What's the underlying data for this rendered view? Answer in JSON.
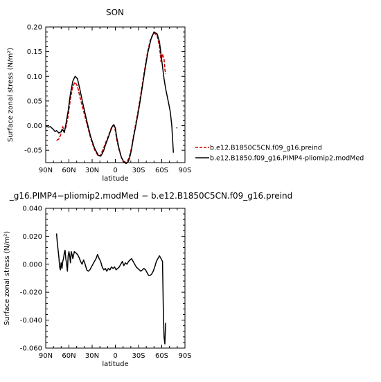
{
  "chart_data": [
    {
      "type": "line",
      "title": "SON",
      "xlabel": "latitude",
      "ylabel": "Surface zonal stress (N/m²)",
      "xlim": [
        90,
        -90
      ],
      "ylim": [
        -0.075,
        0.2
      ],
      "x_ticks": [
        {
          "value": 90,
          "label": "90N"
        },
        {
          "value": 60,
          "label": "60N"
        },
        {
          "value": 30,
          "label": "30N"
        },
        {
          "value": 0,
          "label": "0"
        },
        {
          "value": -30,
          "label": "30S"
        },
        {
          "value": -60,
          "label": "60S"
        },
        {
          "value": -90,
          "label": "90S"
        }
      ],
      "y_ticks": [
        {
          "value": 0.2,
          "label": "0.20"
        },
        {
          "value": 0.15,
          "label": "0.15"
        },
        {
          "value": 0.1,
          "label": "0.10"
        },
        {
          "value": 0.05,
          "label": "0.05"
        },
        {
          "value": 0.0,
          "label": "0.00"
        },
        {
          "value": -0.05,
          "label": "-0.05"
        }
      ],
      "grid": false,
      "legend_position": "right",
      "series": [
        {
          "name": "b.e12.B1850C5CN.f09_g16.preind",
          "color": "#cc0000",
          "dash": "dashed",
          "x": [
            76,
            73,
            71,
            70,
            69,
            68,
            66,
            64,
            61,
            58,
            55,
            52,
            49,
            46,
            42,
            37,
            32,
            27,
            22,
            19,
            17,
            15,
            13,
            10,
            7,
            4,
            2,
            0,
            -2,
            -5,
            -8,
            -11,
            -14,
            -17,
            -19,
            -21,
            -23,
            -26,
            -30,
            -34,
            -38,
            -42,
            -46,
            -50,
            -54,
            -57,
            -59,
            -61,
            -62,
            -63,
            -64,
            -65
          ],
          "y": [
            -0.03,
            -0.027,
            -0.02,
            -0.015,
            -0.005,
            -0.002,
            -0.012,
            -0.004,
            0.02,
            0.055,
            0.08,
            0.088,
            0.08,
            0.06,
            0.035,
            0.005,
            -0.025,
            -0.048,
            -0.062,
            -0.06,
            -0.052,
            -0.045,
            -0.036,
            -0.025,
            -0.012,
            0.0,
            0.0,
            -0.01,
            -0.03,
            -0.05,
            -0.065,
            -0.072,
            -0.075,
            -0.068,
            -0.058,
            -0.045,
            -0.025,
            -0.0,
            0.035,
            0.075,
            0.115,
            0.152,
            0.178,
            0.188,
            0.183,
            0.16,
            0.13,
            0.145,
            0.14,
            0.135,
            0.115,
            0.105
          ]
        },
        {
          "name": "b.e12.B1850.f09_g16.PIMP4-pliomip2.modMed",
          "color": "#000000",
          "dash": "solid",
          "x": [
            90,
            86,
            84,
            82,
            80,
            78,
            76,
            73,
            70,
            68,
            66,
            64,
            61,
            58,
            55,
            52,
            49,
            46,
            42,
            37,
            32,
            27,
            22,
            19,
            17,
            15,
            13,
            10,
            7,
            4,
            2,
            0,
            -2,
            -5,
            -8,
            -11,
            -14,
            -17,
            -19,
            -21,
            -23,
            -26,
            -30,
            -34,
            -38,
            -42,
            -46,
            -50,
            -54,
            -57,
            -59,
            -61,
            -63,
            -65,
            -67,
            -69,
            -71,
            -73,
            -75
          ],
          "y": [
            -0.001,
            -0.003,
            -0.002,
            -0.005,
            -0.008,
            -0.012,
            -0.01,
            -0.015,
            -0.012,
            -0.008,
            -0.014,
            0.002,
            0.03,
            0.065,
            0.09,
            0.1,
            0.095,
            0.075,
            0.045,
            0.01,
            -0.022,
            -0.045,
            -0.06,
            -0.062,
            -0.057,
            -0.05,
            -0.04,
            -0.028,
            -0.014,
            -0.002,
            0.002,
            -0.005,
            -0.025,
            -0.048,
            -0.065,
            -0.074,
            -0.077,
            -0.072,
            -0.062,
            -0.048,
            -0.028,
            -0.004,
            0.03,
            0.07,
            0.11,
            0.148,
            0.175,
            0.19,
            0.186,
            0.17,
            0.145,
            0.12,
            0.095,
            0.075,
            0.06,
            0.045,
            0.028,
            0.0,
            -0.055
          ]
        },
        {
          "name": "",
          "color": "#000000",
          "dash": "solid",
          "x": [
            -79,
            -80
          ],
          "y": [
            -0.004,
            -0.005
          ]
        }
      ]
    },
    {
      "type": "line",
      "title": "_g16.PIMP4−pliomip2.modMed − b.e12.B1850C5CN.f09_g16.preind",
      "xlabel": "latitude",
      "ylabel": "Surface zonal stress (N/m²)",
      "xlim": [
        90,
        -90
      ],
      "ylim": [
        -0.06,
        0.04
      ],
      "x_ticks": [
        {
          "value": 90,
          "label": "90N"
        },
        {
          "value": 60,
          "label": "60N"
        },
        {
          "value": 30,
          "label": "30N"
        },
        {
          "value": 0,
          "label": "0"
        },
        {
          "value": -30,
          "label": "30S"
        },
        {
          "value": -60,
          "label": "60S"
        },
        {
          "value": -90,
          "label": "90S"
        }
      ],
      "y_ticks": [
        {
          "value": 0.04,
          "label": "0.040"
        },
        {
          "value": 0.02,
          "label": "0.020"
        },
        {
          "value": 0.0,
          "label": "0.000"
        },
        {
          "value": -0.02,
          "label": "-0.020"
        },
        {
          "value": -0.04,
          "label": "-0.040"
        },
        {
          "value": -0.06,
          "label": "-0.060"
        }
      ],
      "grid": false,
      "series": [
        {
          "name": "",
          "color": "#000000",
          "dash": "solid",
          "x": [
            76,
            75,
            74,
            73,
            72,
            71,
            70,
            69,
            68,
            67,
            66,
            65,
            64,
            63,
            62,
            61,
            60,
            59,
            58,
            57,
            56,
            55,
            53,
            51,
            49,
            47,
            45,
            43,
            41,
            39,
            37,
            35,
            33,
            31,
            29,
            27,
            25,
            23,
            21,
            19,
            17,
            15,
            13,
            11,
            9,
            7,
            5,
            3,
            1,
            -1,
            -3,
            -5,
            -7,
            -9,
            -11,
            -13,
            -15,
            -17,
            -19,
            -21,
            -23,
            -25,
            -27,
            -29,
            -31,
            -33,
            -35,
            -37,
            -39,
            -41,
            -43,
            -45,
            -47,
            -49,
            -51,
            -53,
            -55,
            -57,
            -59,
            -61,
            -62,
            -63,
            -64,
            -65
          ],
          "y": [
            0.022,
            0.015,
            0.01,
            0.005,
            -0.002,
            -0.004,
            0.001,
            -0.003,
            0.002,
            0.004,
            0.008,
            0.01,
            0.004,
            0.0,
            -0.005,
            0.006,
            0.009,
            0.006,
            0.001,
            0.009,
            0.007,
            0.004,
            0.009,
            0.008,
            0.007,
            0.005,
            0.002,
            0.0,
            0.003,
            0.0,
            -0.004,
            -0.005,
            -0.004,
            -0.002,
            0.0,
            0.002,
            0.004,
            0.007,
            0.004,
            0.002,
            -0.002,
            -0.004,
            -0.003,
            -0.005,
            -0.003,
            -0.004,
            -0.002,
            -0.003,
            -0.002,
            -0.004,
            -0.003,
            -0.002,
            0.0,
            0.002,
            -0.001,
            0.001,
            0.0,
            0.002,
            0.003,
            0.004,
            0.002,
            0.0,
            -0.002,
            -0.003,
            -0.004,
            -0.005,
            -0.004,
            -0.003,
            -0.004,
            -0.006,
            -0.008,
            -0.008,
            -0.007,
            -0.005,
            -0.002,
            0.002,
            0.004,
            0.006,
            0.004,
            0.002,
            -0.03,
            -0.052,
            -0.057,
            -0.042
          ]
        }
      ]
    }
  ]
}
